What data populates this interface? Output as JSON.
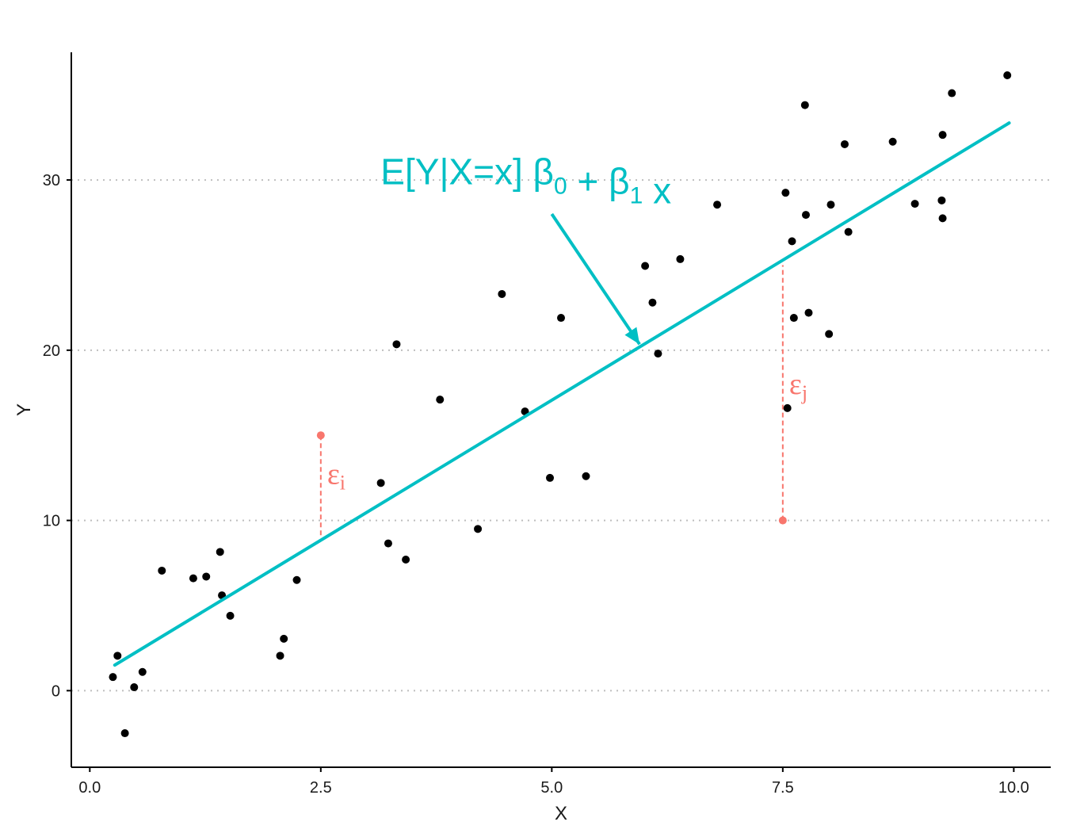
{
  "chart_data": {
    "type": "scatter",
    "xlabel": "X",
    "ylabel": "Y",
    "xlim": [
      -0.2,
      10.4
    ],
    "ylim": [
      -4.5,
      37.5
    ],
    "x_ticks": [
      0.0,
      2.5,
      5.0,
      7.5,
      10.0
    ],
    "x_tick_labels": [
      "0.0",
      "2.5",
      "5.0",
      "7.5",
      "10.0"
    ],
    "y_ticks": [
      0,
      10,
      20,
      30
    ],
    "y_tick_labels": [
      "0",
      "10",
      "20",
      "30"
    ],
    "grid": "horizontal dotted",
    "points": [
      {
        "x": 0.25,
        "y": 0.8
      },
      {
        "x": 0.3,
        "y": 2.05
      },
      {
        "x": 0.38,
        "y": -2.5
      },
      {
        "x": 0.48,
        "y": 0.2
      },
      {
        "x": 0.57,
        "y": 1.1
      },
      {
        "x": 0.78,
        "y": 7.05
      },
      {
        "x": 1.12,
        "y": 6.6
      },
      {
        "x": 1.26,
        "y": 6.7
      },
      {
        "x": 1.41,
        "y": 8.15
      },
      {
        "x": 1.43,
        "y": 5.6
      },
      {
        "x": 1.52,
        "y": 4.4
      },
      {
        "x": 2.06,
        "y": 2.05
      },
      {
        "x": 2.1,
        "y": 3.05
      },
      {
        "x": 2.24,
        "y": 6.5
      },
      {
        "x": 3.15,
        "y": 12.2
      },
      {
        "x": 3.23,
        "y": 8.65
      },
      {
        "x": 3.32,
        "y": 20.35
      },
      {
        "x": 3.42,
        "y": 7.7
      },
      {
        "x": 3.79,
        "y": 17.1
      },
      {
        "x": 4.2,
        "y": 9.5
      },
      {
        "x": 4.46,
        "y": 23.3
      },
      {
        "x": 4.71,
        "y": 16.4
      },
      {
        "x": 4.98,
        "y": 12.5
      },
      {
        "x": 5.1,
        "y": 21.9
      },
      {
        "x": 5.37,
        "y": 12.6
      },
      {
        "x": 6.01,
        "y": 24.95
      },
      {
        "x": 6.09,
        "y": 22.8
      },
      {
        "x": 6.15,
        "y": 19.8
      },
      {
        "x": 6.39,
        "y": 25.35
      },
      {
        "x": 6.79,
        "y": 28.55
      },
      {
        "x": 7.53,
        "y": 29.25
      },
      {
        "x": 7.55,
        "y": 16.6
      },
      {
        "x": 7.6,
        "y": 26.4
      },
      {
        "x": 7.62,
        "y": 21.9
      },
      {
        "x": 7.74,
        "y": 34.4
      },
      {
        "x": 7.75,
        "y": 27.95
      },
      {
        "x": 7.78,
        "y": 22.2
      },
      {
        "x": 8.0,
        "y": 20.95
      },
      {
        "x": 8.02,
        "y": 28.55
      },
      {
        "x": 8.17,
        "y": 32.1
      },
      {
        "x": 8.21,
        "y": 26.95
      },
      {
        "x": 8.69,
        "y": 32.25
      },
      {
        "x": 8.93,
        "y": 28.6
      },
      {
        "x": 9.22,
        "y": 28.8
      },
      {
        "x": 9.23,
        "y": 32.65
      },
      {
        "x": 9.23,
        "y": 27.75
      },
      {
        "x": 9.33,
        "y": 35.1
      },
      {
        "x": 9.93,
        "y": 36.15
      }
    ],
    "regression_line": {
      "x": [
        0.27,
        9.95
      ],
      "y": [
        1.5,
        33.35
      ],
      "color": "#00BFC4"
    },
    "annotations": {
      "regression_label": {
        "text": "E[Y|X=x] β₀ + β₁ x",
        "x": 4.72,
        "y": 30.5,
        "color": "#00BFC4"
      },
      "arrow": {
        "from": [
          5.0,
          28.0
        ],
        "to": [
          5.95,
          20.35
        ],
        "color": "#00BFC4"
      },
      "residuals": [
        {
          "label": "εi",
          "x": 2.5,
          "y_point": 15.0,
          "y_line": 9.0,
          "label_y": 12.7,
          "color": "#F8766D"
        },
        {
          "label": "εj",
          "x": 7.5,
          "y_point": 10.0,
          "y_line": 25.0,
          "label_y": 18.0,
          "color": "#F8766D"
        }
      ]
    },
    "colors": {
      "points": "#000000",
      "line": "#00BFC4",
      "residual": "#F8766D",
      "grid": "#bebebe"
    }
  }
}
